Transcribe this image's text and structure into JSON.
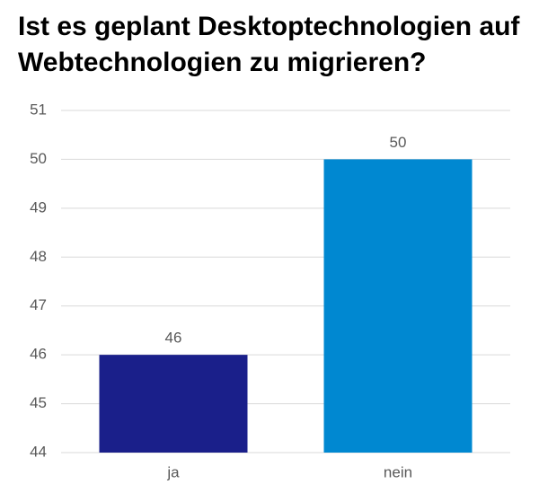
{
  "chart_data": {
    "type": "bar",
    "title": "Ist es geplant Desktoptechnologien auf Webtechnologien zu migrieren?",
    "categories": [
      "ja",
      "nein"
    ],
    "values": [
      46,
      50
    ],
    "colors": [
      "#1a1f8a",
      "#0088d1"
    ],
    "ylim": [
      44,
      51
    ],
    "yticks": [
      44,
      45,
      46,
      47,
      48,
      49,
      50,
      51
    ],
    "grid": true
  }
}
